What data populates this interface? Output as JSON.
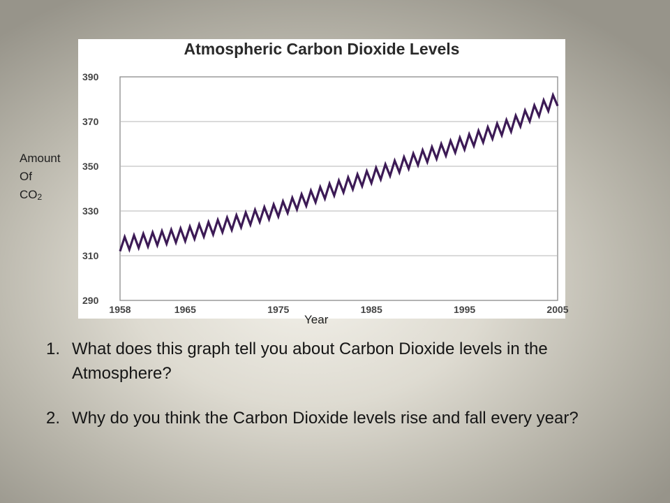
{
  "slide": {
    "y_label_lines": [
      "Amount",
      "Of",
      "CO"
    ],
    "y_label_subscript": "2",
    "x_label": "Year",
    "questions": [
      {
        "number": "1.",
        "text": "What does this graph tell you about Carbon Dioxide levels in the Atmosphere?"
      },
      {
        "number": "2.",
        "text": "Why do you think the Carbon Dioxide levels rise and fall every year?"
      }
    ]
  },
  "chart_data": {
    "type": "line",
    "title": "Atmospheric Carbon Dioxide Levels",
    "xlabel": "",
    "ylabel": "",
    "xlim": [
      1958,
      2005
    ],
    "ylim": [
      290,
      390
    ],
    "x_ticks": [
      1958,
      1965,
      1975,
      1985,
      1995,
      2005
    ],
    "y_ticks": [
      290,
      310,
      330,
      350,
      370,
      390
    ],
    "grid": "horizontal",
    "line_color": "#3c1a55",
    "series": [
      {
        "x": [
          1958,
          1960,
          1965,
          1970,
          1975,
          1980,
          1985,
          1990,
          1995,
          2000,
          2005
        ],
        "values": [
          315,
          316.5,
          319.5,
          324.5,
          330.5,
          338.5,
          345.5,
          353.5,
          360.5,
          368.5,
          380
        ],
        "seasonal_amplitude": 3,
        "cycles_per_year": 1
      }
    ]
  }
}
